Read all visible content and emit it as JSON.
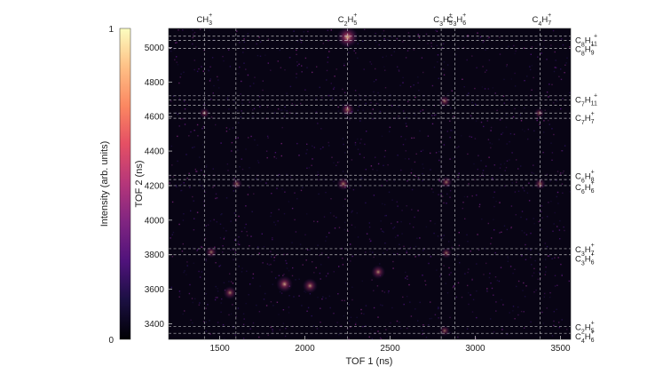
{
  "chart_data": {
    "type": "heatmap",
    "title": "",
    "xlabel": "TOF 1 (ns)",
    "ylabel": "TOF 2 (ns)",
    "xlim": [
      1200,
      3560
    ],
    "ylim": [
      3310,
      5110
    ],
    "xticks": [
      1500,
      2000,
      2500,
      3000,
      3500
    ],
    "yticks": [
      3400,
      3600,
      3800,
      4000,
      4200,
      4400,
      4600,
      4800,
      5000
    ],
    "colorbar": {
      "label": "Intensity (arb. units)",
      "min_label": "0",
      "max_label": "1",
      "range": [
        0,
        1
      ],
      "colormap": "magma"
    },
    "grid": false,
    "top_labels": [
      {
        "text": "CH3+",
        "base": "CH",
        "sub": "3",
        "sup": "+",
        "x": 1410
      },
      {
        "text": "C2H5+",
        "base": "C2H",
        "sub": "5",
        "sup": "+",
        "x": 2250
      },
      {
        "text": "C3H5+",
        "base": "C3H",
        "sub": "5",
        "sup": "+",
        "x": 2810
      },
      {
        "text": "C3H6+",
        "base": "C3H",
        "sub": "6",
        "sup": "+",
        "x": 2890
      },
      {
        "text": "C4H7+",
        "base": "C4H",
        "sub": "7",
        "sup": "+",
        "x": 3390
      }
    ],
    "right_labels": [
      {
        "text": "C8H11+",
        "y": 5040
      },
      {
        "text": "C8H9+",
        "y": 4990
      },
      {
        "text": "C7H11+",
        "y": 4695
      },
      {
        "text": "C7H7+",
        "y": 4590
      },
      {
        "text": "C6H8+",
        "y": 4255
      },
      {
        "text": "C6H6+",
        "y": 4190
      },
      {
        "text": "C3H7+",
        "y": 3830
      },
      {
        "text": "C3H6+",
        "y": 3775
      },
      {
        "text": "C2H5+",
        "y": 3380
      },
      {
        "text": "C4H6+",
        "y": 3325
      }
    ],
    "vertical_dashed_lines_x": [
      1410,
      1595,
      2250,
      2800,
      2880,
      3380
    ],
    "horizontal_dashed_lines_y": [
      5065,
      5040,
      4995,
      4720,
      4695,
      4665,
      4620,
      4590,
      4260,
      4235,
      4200,
      3835,
      3800,
      3385,
      3345
    ],
    "hotspots": [
      {
        "x": 2250,
        "y": 5060,
        "value": 1.0
      },
      {
        "x": 2250,
        "y": 4640,
        "value": 0.55
      },
      {
        "x": 2225,
        "y": 4210,
        "value": 0.5
      },
      {
        "x": 1410,
        "y": 4620,
        "value": 0.35
      },
      {
        "x": 1600,
        "y": 4210,
        "value": 0.35
      },
      {
        "x": 2820,
        "y": 4690,
        "value": 0.4
      },
      {
        "x": 2830,
        "y": 4220,
        "value": 0.4
      },
      {
        "x": 3380,
        "y": 4210,
        "value": 0.4
      },
      {
        "x": 3375,
        "y": 4620,
        "value": 0.3
      },
      {
        "x": 2830,
        "y": 3810,
        "value": 0.35
      },
      {
        "x": 2820,
        "y": 3360,
        "value": 0.35
      },
      {
        "x": 1880,
        "y": 3630,
        "value": 0.7
      },
      {
        "x": 2030,
        "y": 3620,
        "value": 0.6
      },
      {
        "x": 1560,
        "y": 3580,
        "value": 0.5
      },
      {
        "x": 2430,
        "y": 3700,
        "value": 0.55
      },
      {
        "x": 1450,
        "y": 3815,
        "value": 0.4
      }
    ]
  }
}
